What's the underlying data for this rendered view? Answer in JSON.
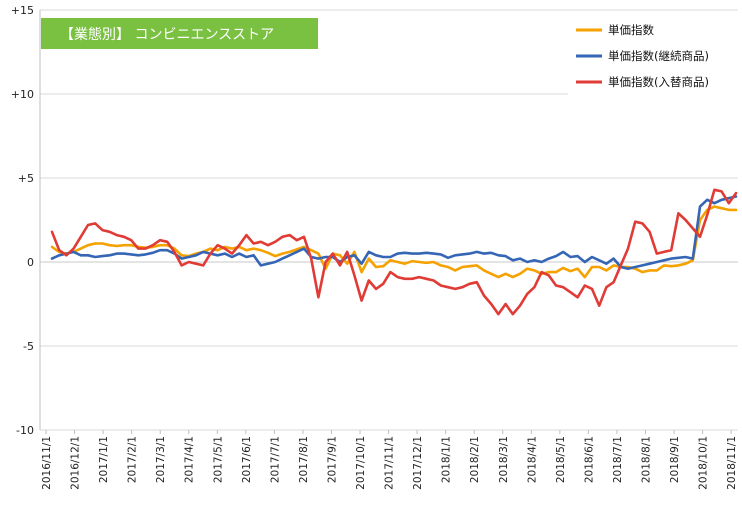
{
  "chart_data": {
    "type": "line",
    "title": "【業態別】 コンビニエンスストア",
    "xlabel": "",
    "ylabel": "",
    "ylim": [
      -10,
      15
    ],
    "yticks": [
      15,
      10,
      5,
      0,
      -5,
      -10
    ],
    "ytick_labels": [
      "+15",
      "+10",
      "+5",
      "0",
      "-5",
      "-10"
    ],
    "xtick_labels": [
      "2016/11/1",
      "2016/12/1",
      "2017/1/1",
      "2017/2/1",
      "2017/3/1",
      "2017/4/1",
      "2017/5/1",
      "2017/6/1",
      "2017/7/1",
      "2017/8/1",
      "2017/9/1",
      "2017/10/1",
      "2017/11/1",
      "2017/12/1",
      "2018/1/1",
      "2018/2/1",
      "2018/3/1",
      "2018/4/1",
      "2018/5/1",
      "2018/6/1",
      "2018/7/1",
      "2018/8/1",
      "2018/9/1",
      "2018/10/1",
      "2018/11/1"
    ],
    "grid": "horizontal",
    "legend_position": "top-right",
    "series": [
      {
        "name": "単価指数",
        "color": "#f5a100",
        "values": [
          0.9,
          0.6,
          0.5,
          0.6,
          0.8,
          1.0,
          1.1,
          1.1,
          1.0,
          0.95,
          1.0,
          1.0,
          0.9,
          0.85,
          0.9,
          1.0,
          1.0,
          0.8,
          0.4,
          0.35,
          0.5,
          0.6,
          0.8,
          0.7,
          0.9,
          0.8,
          0.9,
          0.7,
          0.8,
          0.7,
          0.55,
          0.35,
          0.5,
          0.6,
          0.75,
          0.9,
          0.7,
          0.5,
          -0.4,
          0.5,
          0.4,
          -0.1,
          0.6,
          -0.6,
          0.2,
          -0.3,
          -0.25,
          0.1,
          0.0,
          -0.1,
          0.05,
          0.0,
          -0.05,
          0.0,
          -0.2,
          -0.3,
          -0.5,
          -0.3,
          -0.25,
          -0.2,
          -0.5,
          -0.7,
          -0.9,
          -0.7,
          -0.9,
          -0.7,
          -0.4,
          -0.5,
          -0.7,
          -0.6,
          -0.6,
          -0.35,
          -0.55,
          -0.4,
          -0.9,
          -0.3,
          -0.3,
          -0.5,
          -0.2,
          -0.3,
          -0.3,
          -0.4,
          -0.6,
          -0.5,
          -0.5,
          -0.2,
          -0.25,
          -0.2,
          -0.1,
          0.1,
          2.5,
          3.1,
          3.3,
          3.2,
          3.1,
          3.1
        ]
      },
      {
        "name": "単価指数(継続商品)",
        "color": "#3566b5",
        "values": [
          0.2,
          0.4,
          0.5,
          0.6,
          0.4,
          0.4,
          0.3,
          0.35,
          0.4,
          0.5,
          0.5,
          0.45,
          0.4,
          0.45,
          0.55,
          0.7,
          0.7,
          0.5,
          0.2,
          0.3,
          0.4,
          0.6,
          0.5,
          0.4,
          0.5,
          0.3,
          0.5,
          0.3,
          0.4,
          -0.2,
          -0.1,
          0.0,
          0.2,
          0.4,
          0.6,
          0.8,
          0.3,
          0.2,
          0.3,
          0.3,
          0.0,
          0.3,
          0.4,
          -0.1,
          0.6,
          0.4,
          0.3,
          0.3,
          0.5,
          0.55,
          0.5,
          0.5,
          0.55,
          0.5,
          0.45,
          0.25,
          0.4,
          0.45,
          0.5,
          0.6,
          0.5,
          0.55,
          0.4,
          0.35,
          0.1,
          0.2,
          0.0,
          0.1,
          0.0,
          0.2,
          0.35,
          0.6,
          0.3,
          0.35,
          0.0,
          0.3,
          0.1,
          -0.1,
          0.2,
          -0.3,
          -0.4,
          -0.3,
          -0.2,
          -0.1,
          0.0,
          0.1,
          0.2,
          0.25,
          0.3,
          0.2,
          3.3,
          3.7,
          3.5,
          3.7,
          3.8,
          3.9
        ]
      },
      {
        "name": "単価指数(入替商品)",
        "color": "#e03b35",
        "values": [
          1.8,
          0.7,
          0.4,
          0.8,
          1.5,
          2.2,
          2.3,
          1.9,
          1.8,
          1.6,
          1.5,
          1.3,
          0.8,
          0.8,
          1.0,
          1.3,
          1.2,
          0.6,
          -0.2,
          0.0,
          -0.1,
          -0.2,
          0.5,
          1.0,
          0.8,
          0.5,
          1.0,
          1.6,
          1.1,
          1.2,
          1.0,
          1.2,
          1.5,
          1.6,
          1.3,
          1.5,
          0.2,
          -2.1,
          0.0,
          0.5,
          -0.2,
          0.6,
          -0.8,
          -2.3,
          -1.1,
          -1.6,
          -1.3,
          -0.6,
          -0.9,
          -1.0,
          -1.0,
          -0.9,
          -1.0,
          -1.1,
          -1.4,
          -1.5,
          -1.6,
          -1.5,
          -1.3,
          -1.2,
          -2.0,
          -2.5,
          -3.1,
          -2.5,
          -3.1,
          -2.6,
          -1.9,
          -1.5,
          -0.6,
          -0.8,
          -1.4,
          -1.5,
          -1.8,
          -2.1,
          -1.4,
          -1.6,
          -2.6,
          -1.5,
          -1.2,
          -0.2,
          0.8,
          2.4,
          2.3,
          1.8,
          0.5,
          0.6,
          0.7,
          2.9,
          2.5,
          2.0,
          1.5,
          2.8,
          4.3,
          4.2,
          3.5,
          4.1
        ]
      }
    ]
  }
}
